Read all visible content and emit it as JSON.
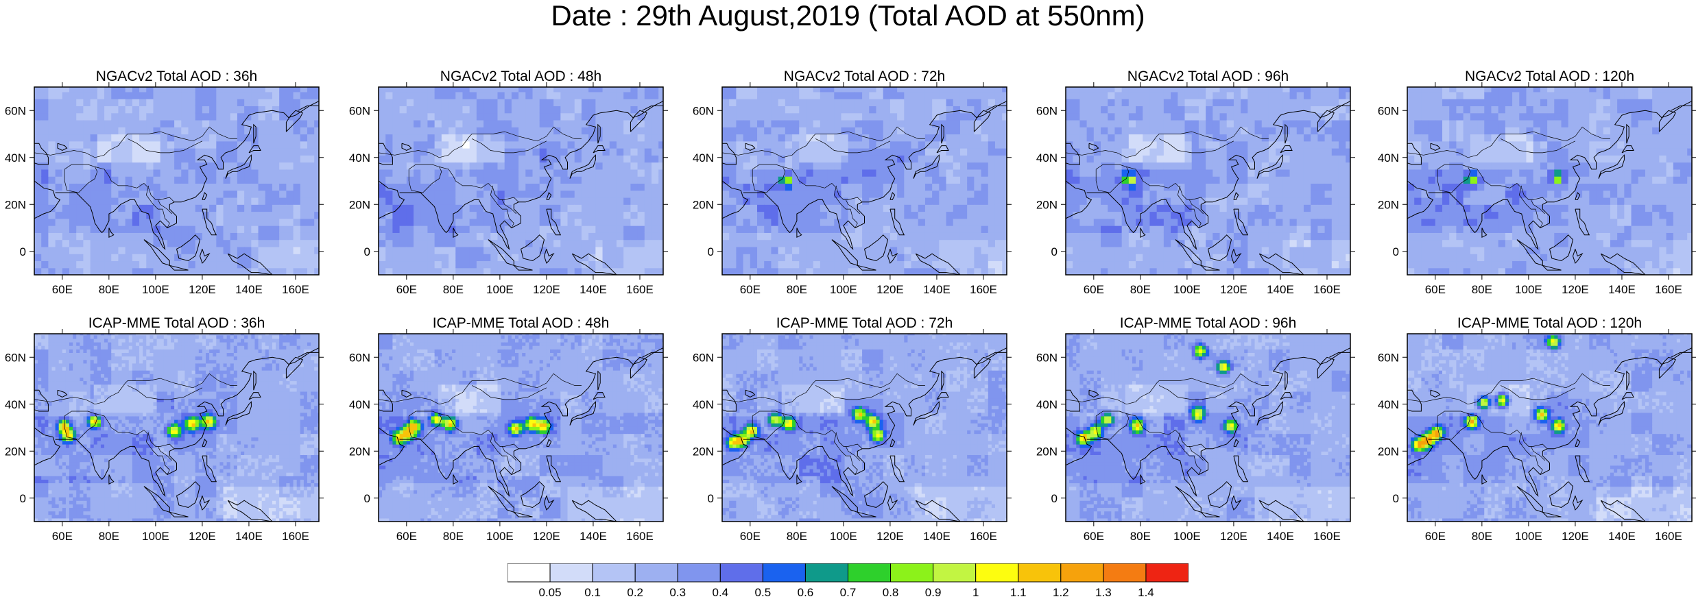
{
  "title": "Date : 29th August,2019 (Total AOD at 550nm)",
  "colors": {
    "land_outline": "#000000",
    "frame": "#000000"
  },
  "chart_data": [
    {
      "type": "heatmap",
      "title": "NGACv2 Total AOD : 36h",
      "xlabel": "",
      "ylabel": "",
      "x_ticks": [
        "60E",
        "80E",
        "100E",
        "120E",
        "140E",
        "160E"
      ],
      "y_ticks": [
        "60N",
        "40N",
        "20N",
        "0"
      ],
      "xlim": [
        48,
        170
      ],
      "ylim": [
        -10,
        70
      ],
      "max_aod": 0.6,
      "hotspots": []
    },
    {
      "type": "heatmap",
      "title": "NGACv2 Total AOD : 48h",
      "xlabel": "",
      "ylabel": "",
      "x_ticks": [
        "60E",
        "80E",
        "100E",
        "120E",
        "140E",
        "160E"
      ],
      "y_ticks": [
        "60N",
        "40N",
        "20N",
        "0"
      ],
      "xlim": [
        48,
        170
      ],
      "ylim": [
        -10,
        70
      ],
      "max_aod": 0.6,
      "hotspots": []
    },
    {
      "type": "heatmap",
      "title": "NGACv2 Total AOD : 72h",
      "xlabel": "",
      "ylabel": "",
      "x_ticks": [
        "60E",
        "80E",
        "100E",
        "120E",
        "140E",
        "160E"
      ],
      "y_ticks": [
        "60N",
        "40N",
        "20N",
        "0"
      ],
      "xlim": [
        48,
        170
      ],
      "ylim": [
        -10,
        70
      ],
      "max_aod": 0.9,
      "hotspots": [
        [
          74,
          29
        ]
      ]
    },
    {
      "type": "heatmap",
      "title": "NGACv2 Total AOD : 96h",
      "xlabel": "",
      "ylabel": "",
      "x_ticks": [
        "60E",
        "80E",
        "100E",
        "120E",
        "140E",
        "160E"
      ],
      "y_ticks": [
        "60N",
        "40N",
        "20N",
        "0"
      ],
      "xlim": [
        48,
        170
      ],
      "ylim": [
        -10,
        70
      ],
      "max_aod": 0.9,
      "hotspots": [
        [
          74,
          29
        ]
      ]
    },
    {
      "type": "heatmap",
      "title": "NGACv2 Total AOD : 120h",
      "xlabel": "",
      "ylabel": "",
      "x_ticks": [
        "60E",
        "80E",
        "100E",
        "120E",
        "140E",
        "160E"
      ],
      "y_ticks": [
        "60N",
        "40N",
        "20N",
        "0"
      ],
      "xlim": [
        48,
        170
      ],
      "ylim": [
        -10,
        70
      ],
      "max_aod": 0.9,
      "hotspots": [
        [
          74,
          29
        ],
        [
          111,
          30
        ]
      ]
    },
    {
      "type": "heatmap",
      "title": "ICAP-MME Total AOD : 36h",
      "xlabel": "",
      "ylabel": "",
      "x_ticks": [
        "60E",
        "80E",
        "100E",
        "120E",
        "140E",
        "160E"
      ],
      "y_ticks": [
        "60N",
        "40N",
        "20N",
        "0"
      ],
      "xlim": [
        48,
        170
      ],
      "ylim": [
        -10,
        70
      ],
      "max_aod": 1.1,
      "hotspots": [
        [
          60,
          30
        ],
        [
          62,
          26
        ],
        [
          73,
          32
        ],
        [
          107,
          28
        ],
        [
          115,
          31
        ],
        [
          122,
          32
        ]
      ]
    },
    {
      "type": "heatmap",
      "title": "ICAP-MME Total AOD : 48h",
      "xlabel": "",
      "ylabel": "",
      "x_ticks": [
        "60E",
        "80E",
        "100E",
        "120E",
        "140E",
        "160E"
      ],
      "y_ticks": [
        "60N",
        "40N",
        "20N",
        "0"
      ],
      "xlim": [
        48,
        170
      ],
      "ylim": [
        -10,
        70
      ],
      "max_aod": 1.1,
      "hotspots": [
        [
          56,
          25
        ],
        [
          60,
          27
        ],
        [
          63,
          30
        ],
        [
          72,
          33
        ],
        [
          78,
          31
        ],
        [
          106,
          29
        ],
        [
          113,
          31
        ],
        [
          118,
          30
        ]
      ]
    },
    {
      "type": "heatmap",
      "title": "ICAP-MME Total AOD : 72h",
      "xlabel": "",
      "ylabel": "",
      "x_ticks": [
        "60E",
        "80E",
        "100E",
        "120E",
        "140E",
        "160E"
      ],
      "y_ticks": [
        "60N",
        "40N",
        "20N",
        "0"
      ],
      "xlim": [
        48,
        170
      ],
      "ylim": [
        -10,
        70
      ],
      "max_aod": 1.1,
      "hotspots": [
        [
          52,
          23
        ],
        [
          56,
          24
        ],
        [
          60,
          28
        ],
        [
          70,
          33
        ],
        [
          76,
          31
        ],
        [
          106,
          35
        ],
        [
          112,
          32
        ],
        [
          114,
          26
        ]
      ]
    },
    {
      "type": "heatmap",
      "title": "ICAP-MME Total AOD : 96h",
      "xlabel": "",
      "ylabel": "",
      "x_ticks": [
        "60E",
        "80E",
        "100E",
        "120E",
        "140E",
        "160E"
      ],
      "y_ticks": [
        "60N",
        "40N",
        "20N",
        "0"
      ],
      "xlim": [
        48,
        170
      ],
      "ylim": [
        -10,
        70
      ],
      "max_aod": 1.1,
      "hotspots": [
        [
          55,
          25
        ],
        [
          60,
          28
        ],
        [
          65,
          33
        ],
        [
          78,
          30
        ],
        [
          104,
          35
        ],
        [
          118,
          30
        ],
        [
          105,
          62
        ],
        [
          115,
          55
        ]
      ]
    },
    {
      "type": "heatmap",
      "title": "ICAP-MME Total AOD : 120h",
      "xlabel": "",
      "ylabel": "",
      "x_ticks": [
        "60E",
        "80E",
        "100E",
        "120E",
        "140E",
        "160E"
      ],
      "y_ticks": [
        "60N",
        "40N",
        "20N",
        "0"
      ],
      "xlim": [
        48,
        170
      ],
      "ylim": [
        -10,
        70
      ],
      "max_aod": 1.2,
      "hotspots": [
        [
          52,
          22
        ],
        [
          56,
          24
        ],
        [
          60,
          27
        ],
        [
          80,
          40
        ],
        [
          88,
          41
        ],
        [
          75,
          32
        ],
        [
          105,
          35
        ],
        [
          112,
          30
        ],
        [
          110,
          66
        ]
      ]
    }
  ],
  "colorbar": {
    "labels": [
      "0.05",
      "0.1",
      "0.2",
      "0.3",
      "0.4",
      "0.5",
      "0.6",
      "0.7",
      "0.8",
      "0.9",
      "1",
      "1.1",
      "1.2",
      "1.3",
      "1.4"
    ],
    "colors": [
      "#ffffff",
      "#d2dcf9",
      "#b4c4f5",
      "#9db0f1",
      "#8095ee",
      "#5f6eea",
      "#1a62ef",
      "#0f9a8a",
      "#2ed02c",
      "#8cf21a",
      "#c2f542",
      "#fdfd0f",
      "#f8c30a",
      "#f6a20c",
      "#f47c12",
      "#ee2413"
    ]
  }
}
